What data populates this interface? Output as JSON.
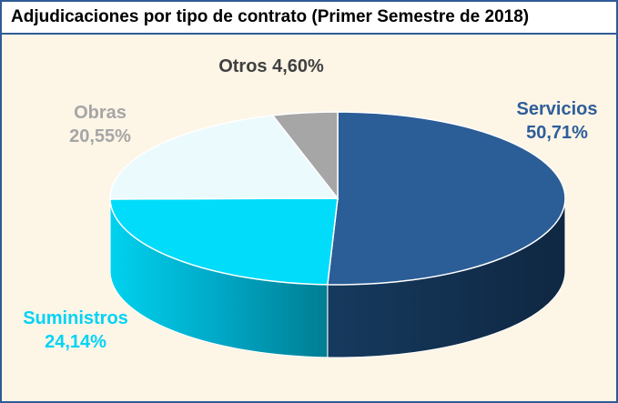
{
  "chart_data": {
    "type": "pie",
    "title": "Adjudicaciones por tipo de contrato (Primer Semestre de 2018)",
    "categories": [
      "Servicios",
      "Suministros",
      "Obras",
      "Otros"
    ],
    "values": [
      50.71,
      24.14,
      20.55,
      4.6
    ],
    "value_labels": [
      "50,71%",
      "24,14%",
      "20,55%",
      "4,60%"
    ],
    "colors": [
      "#2b5d96",
      "#00dcf9",
      "#ebfafd",
      "#a6a6a6"
    ],
    "label_colors": [
      "#2e5e9a",
      "#00d3f5",
      "#a6a6a6",
      "#404040"
    ],
    "legend": "none",
    "style": "3d-pie"
  }
}
